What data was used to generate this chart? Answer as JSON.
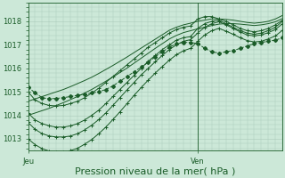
{
  "bg_color": "#cce8d8",
  "grid_color": "#aacaba",
  "line_color": "#1a5c28",
  "marker_color": "#1a5c28",
  "xlabel": "Pression niveau de la mer( hPa )",
  "xlabel_fontsize": 8,
  "tick_fontsize": 6,
  "tick_color": "#1a5c28",
  "ylim": [
    1012.5,
    1018.8
  ],
  "yticks": [
    1013,
    1014,
    1015,
    1016,
    1017,
    1018
  ],
  "xlim": [
    0,
    36
  ],
  "x_jeu": 0,
  "x_ven": 24,
  "vline_x": 24,
  "t": [
    0,
    1,
    2,
    3,
    4,
    5,
    6,
    7,
    8,
    9,
    10,
    11,
    12,
    13,
    14,
    15,
    16,
    17,
    18,
    19,
    20,
    21,
    22,
    23,
    24,
    25,
    26,
    27,
    28,
    29,
    30,
    31,
    32,
    33,
    34,
    35,
    36
  ],
  "y_dashed": [
    1015.2,
    1014.95,
    1014.75,
    1014.7,
    1014.72,
    1014.75,
    1014.8,
    1014.85,
    1014.9,
    1014.95,
    1015.0,
    1015.1,
    1015.25,
    1015.45,
    1015.65,
    1015.85,
    1016.05,
    1016.25,
    1016.5,
    1016.7,
    1016.9,
    1017.05,
    1017.1,
    1017.1,
    1017.05,
    1016.85,
    1016.7,
    1016.65,
    1016.7,
    1016.75,
    1016.85,
    1016.95,
    1017.05,
    1017.1,
    1017.15,
    1017.2,
    1017.3
  ],
  "y_line1": [
    1015.0,
    1014.65,
    1014.5,
    1014.42,
    1014.4,
    1014.42,
    1014.5,
    1014.6,
    1014.75,
    1014.95,
    1015.15,
    1015.4,
    1015.65,
    1015.9,
    1016.15,
    1016.4,
    1016.65,
    1016.9,
    1017.1,
    1017.3,
    1017.5,
    1017.65,
    1017.75,
    1017.8,
    1018.1,
    1018.2,
    1018.2,
    1018.1,
    1018.0,
    1017.85,
    1017.7,
    1017.6,
    1017.55,
    1017.6,
    1017.7,
    1017.85,
    1018.05
  ],
  "y_line2": [
    1014.1,
    1013.8,
    1013.65,
    1013.55,
    1013.5,
    1013.5,
    1013.55,
    1013.65,
    1013.8,
    1014.0,
    1014.22,
    1014.5,
    1014.8,
    1015.1,
    1015.4,
    1015.7,
    1016.0,
    1016.3,
    1016.55,
    1016.8,
    1017.0,
    1017.2,
    1017.3,
    1017.35,
    1017.7,
    1017.9,
    1018.0,
    1018.05,
    1017.9,
    1017.75,
    1017.6,
    1017.5,
    1017.45,
    1017.5,
    1017.6,
    1017.75,
    1018.0
  ],
  "y_line3": [
    1013.7,
    1013.4,
    1013.22,
    1013.12,
    1013.08,
    1013.08,
    1013.12,
    1013.22,
    1013.38,
    1013.58,
    1013.82,
    1014.1,
    1014.42,
    1014.75,
    1015.08,
    1015.4,
    1015.72,
    1016.0,
    1016.28,
    1016.55,
    1016.8,
    1017.0,
    1017.15,
    1017.22,
    1017.5,
    1017.75,
    1017.9,
    1017.98,
    1017.85,
    1017.7,
    1017.55,
    1017.42,
    1017.38,
    1017.42,
    1017.52,
    1017.65,
    1017.9
  ],
  "y_line4": [
    1013.0,
    1012.75,
    1012.58,
    1012.48,
    1012.45,
    1012.45,
    1012.5,
    1012.6,
    1012.77,
    1012.97,
    1013.22,
    1013.5,
    1013.82,
    1014.15,
    1014.5,
    1014.85,
    1015.18,
    1015.5,
    1015.8,
    1016.08,
    1016.35,
    1016.58,
    1016.75,
    1016.85,
    1017.15,
    1017.42,
    1017.6,
    1017.7,
    1017.58,
    1017.45,
    1017.3,
    1017.18,
    1017.12,
    1017.15,
    1017.25,
    1017.38,
    1017.62
  ],
  "y_line5_straight": [
    1014.6,
    1014.7,
    1014.8,
    1014.9,
    1015.0,
    1015.1,
    1015.22,
    1015.35,
    1015.48,
    1015.62,
    1015.78,
    1015.95,
    1016.12,
    1016.3,
    1016.48,
    1016.67,
    1016.86,
    1017.05,
    1017.24,
    1017.43,
    1017.62,
    1017.75,
    1017.85,
    1017.92,
    1018.0,
    1018.05,
    1018.1,
    1018.1,
    1018.08,
    1018.05,
    1018.0,
    1017.95,
    1017.92,
    1017.95,
    1018.0,
    1018.1,
    1018.25
  ],
  "y_line6_straight": [
    1014.0,
    1014.1,
    1014.2,
    1014.3,
    1014.42,
    1014.54,
    1014.67,
    1014.8,
    1014.95,
    1015.1,
    1015.27,
    1015.45,
    1015.63,
    1015.82,
    1016.01,
    1016.22,
    1016.43,
    1016.64,
    1016.85,
    1017.05,
    1017.25,
    1017.4,
    1017.52,
    1017.6,
    1017.68,
    1017.75,
    1017.82,
    1017.88,
    1017.9,
    1017.9,
    1017.88,
    1017.85,
    1017.82,
    1017.85,
    1017.9,
    1017.98,
    1018.12
  ]
}
